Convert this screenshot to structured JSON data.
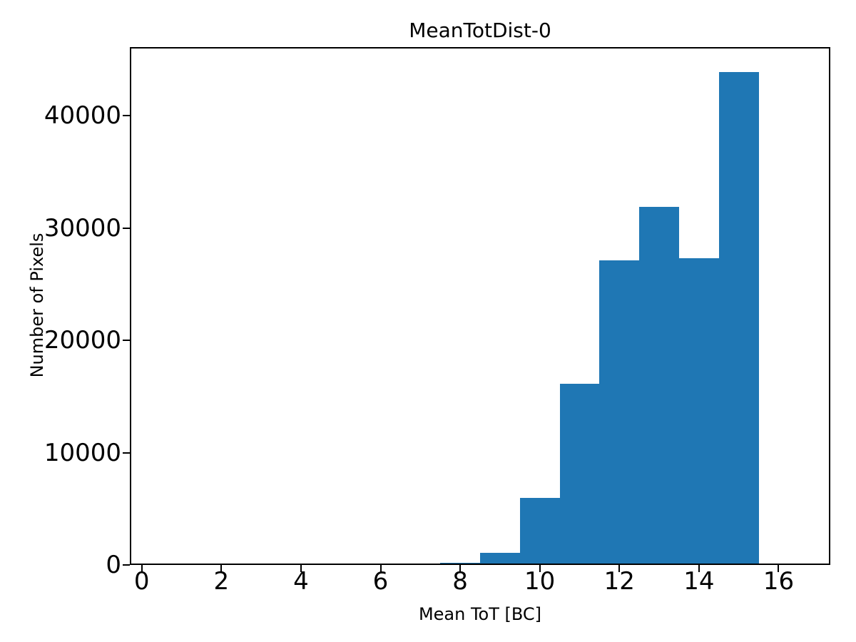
{
  "chart_data": {
    "type": "bar",
    "subtype": "histogram",
    "title": "MeanTotDist-0",
    "xlabel": "Mean ToT [BC]",
    "ylabel": "Number of Pixels",
    "bin_edges": [
      7.5,
      8.5,
      9.5,
      10.5,
      11.5,
      12.5,
      13.5,
      14.5,
      15.5
    ],
    "counts": [
      200,
      1100,
      6000,
      16100,
      27100,
      31900,
      27300,
      43900
    ],
    "xlim": [
      -0.3,
      17.3
    ],
    "ylim": [
      0,
      46100
    ],
    "xticks": [
      0,
      2,
      4,
      6,
      8,
      10,
      12,
      14,
      16
    ],
    "xtick_labels": [
      "0",
      "2",
      "4",
      "6",
      "8",
      "10",
      "12",
      "14",
      "16"
    ],
    "yticks": [
      0,
      10000,
      20000,
      30000,
      40000
    ],
    "ytick_labels": [
      "0",
      "10000",
      "20000",
      "30000",
      "40000"
    ],
    "bar_color": "#1f77b4",
    "axis_color": "#000000",
    "background_color": "#ffffff",
    "grid": false,
    "legend_position": "none"
  }
}
